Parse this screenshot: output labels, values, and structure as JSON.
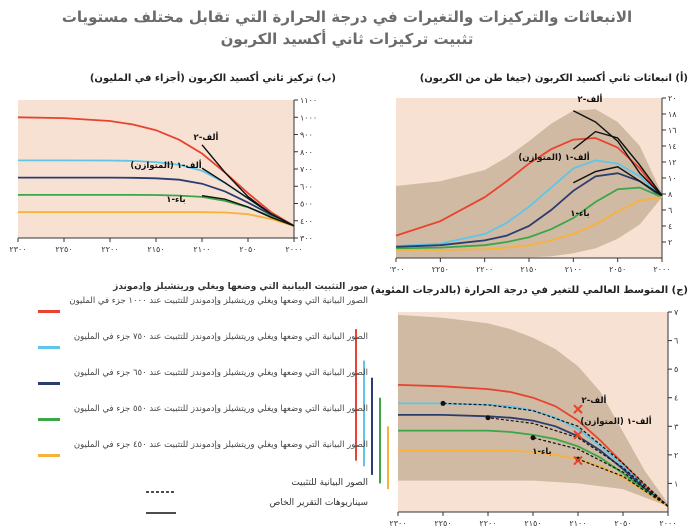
{
  "title": {
    "line1": "الانبعاثات والتركيزات والتغيرات في درجة الحرارة التي تقابل مختلف مستويات",
    "line2": "تثبيت تركيزات ثاني أكسيد الكربون"
  },
  "colors": {
    "red": "#e8432f",
    "lightblue": "#5ec6e8",
    "navy": "#2a3d6e",
    "green": "#3aa648",
    "orange": "#f7b23b",
    "band": "#c9b39a",
    "panel_bg": "#f7e1d3",
    "black": "#111111"
  },
  "legend": {
    "header": "صور التثبيت البيانية التي وضعها ويغلي وريتشيلز وإدموندز",
    "items": [
      {
        "color_key": "red",
        "text": "الصور البيانية التي وضعها ويغلي وريتشيلز وإدموندز للتثبيت عند ١٠٠٠ جزء في المليون"
      },
      {
        "color_key": "lightblue",
        "text": "الصور البيانية التي وضعها ويغلي وريتشيلز وإدموندز للتثبيت عند ٧٥٠ جزء في المليون"
      },
      {
        "color_key": "navy",
        "text": "الصور البيانية التي وضعها ويغلي وريتشيلز وإدموندز للتثبيت عند ٦٥٠ جزء في المليون"
      },
      {
        "color_key": "green",
        "text": "الصور البيانية التي وضعها ويغلي وريتشيلز وإدموندز للتثبيت عند ٥٥٠ جزء في المليون"
      },
      {
        "color_key": "orange",
        "text": "الصور البيانية التي وضعها ويغلي وريتشيلز وإدموندز للتثبيت عند ٤٥٠ جزء في المليون"
      }
    ],
    "stab_note": "الصور البيانية للتثبيت",
    "sres_note": "سيناريوهات التقرير الخاص"
  },
  "chart_data": [
    {
      "id": "a",
      "type": "line",
      "title": "(أ) انبعاثات ثاني أكسيد الكربون (جيغا طن من الكربون)",
      "x_ticks": [
        "٢٠٠٠",
        "٢٠٥٠",
        "٢١٠٠",
        "٢١٥٠",
        "٢٢٠٠",
        "٢٢٥٠",
        "٢٣٠٠"
      ],
      "y_ticks": [
        "٢",
        "٤",
        "٦",
        "٨",
        "١٠",
        "١٢",
        "١٤",
        "١٦",
        "١٨",
        "٢٠"
      ],
      "x_range": [
        2000,
        2300
      ],
      "y_range": [
        0,
        20
      ],
      "x": [
        2000,
        2025,
        2050,
        2075,
        2100,
        2125,
        2150,
        2175,
        2200,
        2250,
        2300
      ],
      "band": {
        "upper": [
          8,
          14,
          17,
          18.6,
          18.4,
          16.8,
          14.6,
          12.6,
          11,
          9.6,
          9
        ],
        "lower": [
          7.6,
          4.2,
          2.4,
          1.2,
          0.6,
          0.2,
          0.1,
          0.1,
          0.1,
          0.1,
          0.1
        ]
      },
      "series": [
        {
          "name": "١٠٠٠",
          "color_key": "red",
          "values": [
            7.6,
            11.2,
            13.8,
            15,
            14.8,
            13.6,
            11.8,
            9.6,
            7.6,
            4.6,
            2.8
          ]
        },
        {
          "name": "٧٥٠",
          "color_key": "lightblue",
          "values": [
            7.6,
            10.2,
            11.8,
            12.2,
            11.2,
            8.8,
            6.4,
            4.4,
            3,
            1.8,
            1.5
          ]
        },
        {
          "name": "٦٥٠",
          "color_key": "navy",
          "values": [
            7.6,
            9.6,
            10.6,
            10.2,
            8.4,
            6.0,
            4.0,
            2.8,
            2.2,
            1.6,
            1.4
          ]
        },
        {
          "name": "٥٥٠",
          "color_key": "green",
          "values": [
            7.6,
            8.8,
            8.6,
            7.0,
            5.0,
            3.6,
            2.6,
            2.0,
            1.6,
            1.3,
            1.2
          ]
        },
        {
          "name": "٤٥٠",
          "color_key": "orange",
          "values": [
            7.6,
            7.2,
            5.8,
            4.2,
            3.0,
            2.2,
            1.6,
            1.3,
            1.1,
            1.0,
            1.0
          ]
        }
      ],
      "sres": [
        {
          "name": "ألف-٢",
          "x": [
            2000,
            2025,
            2050,
            2075,
            2100
          ],
          "values": [
            7.8,
            10.6,
            14.6,
            17,
            18.4
          ]
        },
        {
          "name": "ألف-١ (المتوازن)",
          "x": [
            2000,
            2025,
            2050,
            2075,
            2100
          ],
          "values": [
            7.8,
            11.6,
            15.0,
            15.8,
            13.6
          ]
        },
        {
          "name": "باء-١",
          "x": [
            2000,
            2025,
            2050,
            2075,
            2100
          ],
          "values": [
            7.8,
            9.6,
            11.4,
            10.8,
            9.4
          ]
        }
      ],
      "labels": [
        "ألف-٢",
        "ألف-١ (المتوازن)",
        "باء-١"
      ]
    },
    {
      "id": "b",
      "type": "line",
      "title": "(ب) تركيز ثاني أكسيد الكربون (أجزاء في المليون)",
      "x_ticks": [
        "٢٠٠٠",
        "٢٠٥٠",
        "٢١٠٠",
        "٢١٥٠",
        "٢٢٠٠",
        "٢٢٥٠",
        "٢٣٠٠"
      ],
      "y_ticks": [
        "٣٠٠",
        "٤٠٠",
        "٥٠٠",
        "٦٠٠",
        "٧٠٠",
        "٨٠٠",
        "٩٠٠",
        "١٠٠٠",
        "١١٠٠"
      ],
      "x_range": [
        2000,
        2300
      ],
      "y_range": [
        300,
        1100
      ],
      "x": [
        2000,
        2025,
        2050,
        2075,
        2100,
        2125,
        2150,
        2175,
        2200,
        2250,
        2300
      ],
      "series": [
        {
          "name": "١٠٠٠",
          "color_key": "red",
          "values": [
            370,
            450,
            560,
            680,
            790,
            870,
            925,
            958,
            978,
            995,
            1000
          ]
        },
        {
          "name": "٧٥٠",
          "color_key": "lightblue",
          "values": [
            370,
            440,
            530,
            620,
            690,
            725,
            740,
            747,
            749,
            750,
            750
          ]
        },
        {
          "name": "٦٥٠",
          "color_key": "navy",
          "values": [
            370,
            435,
            505,
            570,
            615,
            638,
            646,
            649,
            650,
            650,
            650
          ]
        },
        {
          "name": "٥٥٠",
          "color_key": "green",
          "values": [
            370,
            425,
            478,
            515,
            538,
            546,
            549,
            550,
            550,
            550,
            550
          ]
        },
        {
          "name": "٤٥٠",
          "color_key": "orange",
          "values": [
            370,
            410,
            438,
            448,
            450,
            450,
            450,
            450,
            450,
            450,
            450
          ]
        }
      ],
      "sres": [
        {
          "name": "ألف-٢",
          "x": [
            2000,
            2025,
            2050,
            2075,
            2100
          ],
          "values": [
            370,
            440,
            540,
            680,
            840
          ]
        },
        {
          "name": "ألف-١ (المتوازن)",
          "x": [
            2000,
            2025,
            2050,
            2075,
            2100
          ],
          "values": [
            370,
            440,
            530,
            620,
            705
          ]
        },
        {
          "name": "باء-١",
          "x": [
            2000,
            2025,
            2050,
            2075,
            2100
          ],
          "values": [
            370,
            420,
            480,
            525,
            545
          ]
        }
      ],
      "labels": [
        "ألف-٢",
        "ألف-١ (المتوازن)",
        "باء-١"
      ]
    },
    {
      "id": "c",
      "type": "line",
      "title": "(ج) المتوسط العالمي للتغير في درجة الحرارة (بالدرجات المئوية)",
      "x_ticks": [
        "٢٠٠٠",
        "٢٠٥٠",
        "٢١٠٠",
        "٢١٥٠",
        "٢٢٠٠",
        "٢٢٥٠",
        "٢٣٠٠"
      ],
      "y_ticks": [
        "١",
        "٢",
        "٣",
        "٤",
        "٥",
        "٦",
        "٧"
      ],
      "x_range": [
        2000,
        2300
      ],
      "y_range": [
        0,
        7
      ],
      "x": [
        2000,
        2025,
        2050,
        2075,
        2100,
        2125,
        2150,
        2175,
        2200,
        2250,
        2300
      ],
      "band": {
        "upper": [
          0.3,
          1.4,
          2.8,
          4.2,
          5.1,
          5.7,
          6.1,
          6.4,
          6.6,
          6.8,
          6.9
        ],
        "lower": [
          0.2,
          0.5,
          0.8,
          0.9,
          1.0,
          1.05,
          1.1,
          1.1,
          1.1,
          1.1,
          1.1
        ]
      },
      "series": [
        {
          "name": "١٠٠٠",
          "color_key": "red",
          "values": [
            0.2,
            0.9,
            1.7,
            2.5,
            3.2,
            3.7,
            4.0,
            4.2,
            4.3,
            4.4,
            4.45
          ]
        },
        {
          "name": "٧٥٠",
          "color_key": "lightblue",
          "values": [
            0.2,
            0.85,
            1.6,
            2.3,
            2.9,
            3.3,
            3.55,
            3.7,
            3.75,
            3.8,
            3.8
          ]
        },
        {
          "name": "٦٥٠",
          "color_key": "navy",
          "values": [
            0.2,
            0.8,
            1.5,
            2.15,
            2.65,
            3.0,
            3.2,
            3.3,
            3.35,
            3.4,
            3.4
          ]
        },
        {
          "name": "٥٥٠",
          "color_key": "green",
          "values": [
            0.2,
            0.75,
            1.35,
            1.9,
            2.3,
            2.55,
            2.7,
            2.8,
            2.85,
            2.85,
            2.85
          ]
        },
        {
          "name": "٤٥٠",
          "color_key": "orange",
          "values": [
            0.2,
            0.7,
            1.2,
            1.6,
            1.85,
            2.0,
            2.1,
            2.15,
            2.15,
            2.15,
            2.15
          ]
        }
      ],
      "dashed_stab": [
        {
          "x": [
            2000,
            2050,
            2100,
            2150,
            2200,
            2250
          ],
          "values": [
            0.2,
            1.7,
            3.0,
            3.55,
            3.75,
            3.8
          ]
        },
        {
          "x": [
            2000,
            2050,
            2100,
            2150,
            2200
          ],
          "values": [
            0.2,
            1.55,
            2.6,
            3.1,
            3.3
          ]
        },
        {
          "x": [
            2000,
            2050,
            2100,
            2150
          ],
          "values": [
            0.2,
            1.4,
            2.2,
            2.6
          ]
        },
        {
          "x": [
            2000,
            2050,
            2100
          ],
          "values": [
            0.2,
            1.25,
            1.85
          ]
        }
      ],
      "dots": [
        {
          "x": 2250,
          "y": 3.8
        },
        {
          "x": 2200,
          "y": 3.3
        },
        {
          "x": 2150,
          "y": 2.6
        },
        {
          "x": 2100,
          "y": 1.85
        }
      ],
      "crosses": [
        {
          "x": 2100,
          "y": 3.6,
          "label": "ألف-٢"
        },
        {
          "x": 2100,
          "y": 2.7,
          "label": "ألف-١ (المتوازن)"
        },
        {
          "x": 2100,
          "y": 1.8,
          "label": "باء-١"
        }
      ],
      "side_bars": [
        {
          "color_key": "red",
          "range": [
            1.8,
            6.4
          ]
        },
        {
          "color_key": "lightblue",
          "range": [
            1.6,
            5.3
          ]
        },
        {
          "color_key": "navy",
          "range": [
            1.3,
            4.7
          ]
        },
        {
          "color_key": "green",
          "range": [
            1.0,
            4.0
          ]
        },
        {
          "color_key": "orange",
          "range": [
            0.8,
            3.0
          ]
        }
      ]
    }
  ]
}
